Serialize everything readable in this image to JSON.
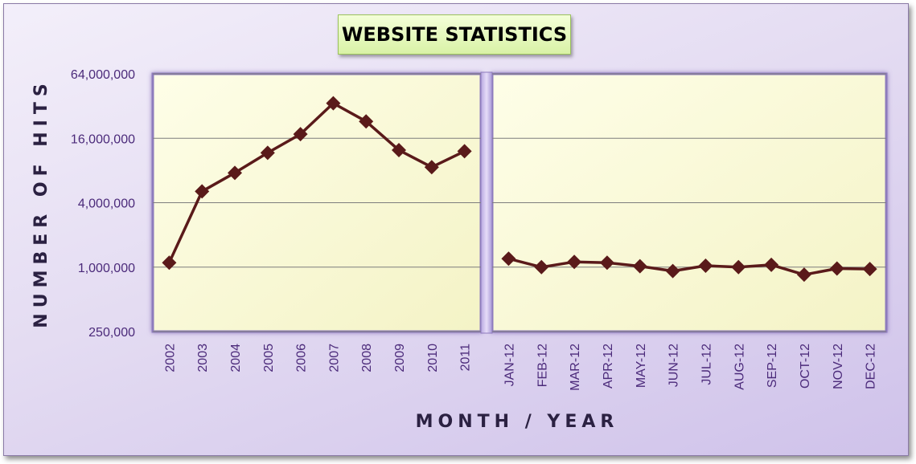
{
  "title": "WEBSITE STATISTICS",
  "chart_data": {
    "type": "line",
    "title": "WEBSITE STATISTICS",
    "xlabel": "MONTH / YEAR",
    "ylabel": "NUMBER OF HITS",
    "yscale": "log",
    "ylim": [
      250000,
      64000000
    ],
    "yticks": [
      "250,000",
      "1,000,000",
      "4,000,000",
      "16,000,000",
      "64,000,000"
    ],
    "grid": true,
    "legend": "none",
    "colors": {
      "line": "#5a1a1a",
      "plot_bg": "#fdfde0",
      "plot_border": "#8e7bbd"
    },
    "series": [
      {
        "categories": [
          "2002",
          "2003",
          "2004",
          "2005",
          "2006",
          "2007",
          "2008",
          "2009",
          "2010",
          "2011"
        ],
        "values": [
          1100000,
          5100000,
          7600000,
          11700000,
          17500000,
          34000000,
          23000000,
          12400000,
          8600000,
          12100000
        ]
      },
      {
        "categories": [
          "JAN-12",
          "FEB-12",
          "MAR-12",
          "APR-12",
          "MAY-12",
          "JUN-12",
          "JUL-12",
          "AUG-12",
          "SEP-12",
          "OCT-12",
          "NOV-12",
          "DEC-12"
        ],
        "values": [
          1200000,
          1000000,
          1120000,
          1100000,
          1020000,
          920000,
          1030000,
          1000000,
          1050000,
          850000,
          970000,
          960000
        ]
      }
    ]
  }
}
